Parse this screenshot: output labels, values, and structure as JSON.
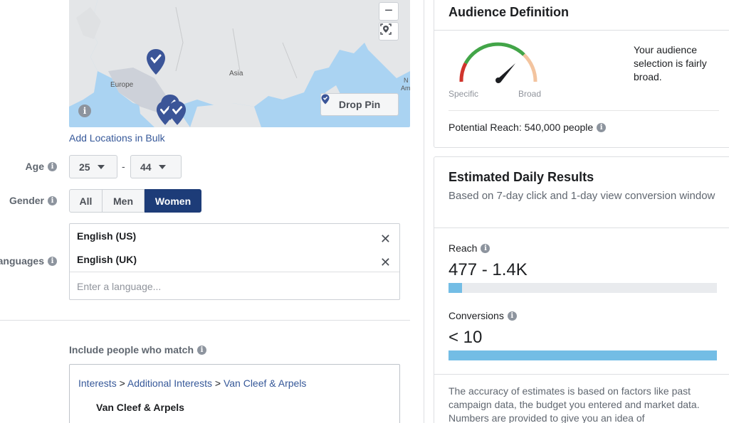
{
  "map": {
    "labels": {
      "asia": "Asia",
      "europe": "Europe",
      "edge": "N",
      "edge2": "Am"
    },
    "drop_pin_label": "Drop Pin",
    "zoom_out_glyph": "−"
  },
  "locations": {
    "bulk_link": "Add Locations in Bulk"
  },
  "age": {
    "label": "Age",
    "min": "25",
    "max": "44",
    "separator": "-"
  },
  "gender": {
    "label": "Gender",
    "options": [
      "All",
      "Men",
      "Women"
    ],
    "selected": "Women"
  },
  "languages": {
    "label": "Languages",
    "items": [
      "English (US)",
      "English (UK)"
    ],
    "remove_glyph": "✕",
    "placeholder": "Enter a language..."
  },
  "detailed_targeting": {
    "label": "Include people who match",
    "breadcrumb": [
      "Interests",
      "Additional Interests",
      "Van Cleef & Arpels"
    ],
    "separator": ">",
    "selected": "Van Cleef & Arpels"
  },
  "audience_definition": {
    "title": "Audience Definition",
    "gauge_left": "Specific",
    "gauge_right": "Broad",
    "description": "Your audience selection is fairly broad.",
    "potential_reach": "Potential Reach: 540,000 people"
  },
  "daily_results": {
    "title": "Estimated Daily Results",
    "subtitle": "Based on 7-day click and 1-day view conversion window",
    "reach_label": "Reach",
    "reach_value": "477 - 1.4K",
    "reach_fill": 0.05,
    "conversions_label": "Conversions",
    "conversions_value": "< 10",
    "conversions_fill": 1.0,
    "footnote": "The accuracy of estimates is based on factors like past campaign data, the budget you entered and market data. Numbers are provided to give you an idea of"
  },
  "colors": {
    "accent": "#1d3c78",
    "link": "#365899",
    "bar": "#73bde5",
    "map_water": "#aad3f2",
    "pin": "#3b5598"
  },
  "icons": {
    "info": "i",
    "pin": "map-pin-check-icon",
    "locate": "locate-icon"
  }
}
